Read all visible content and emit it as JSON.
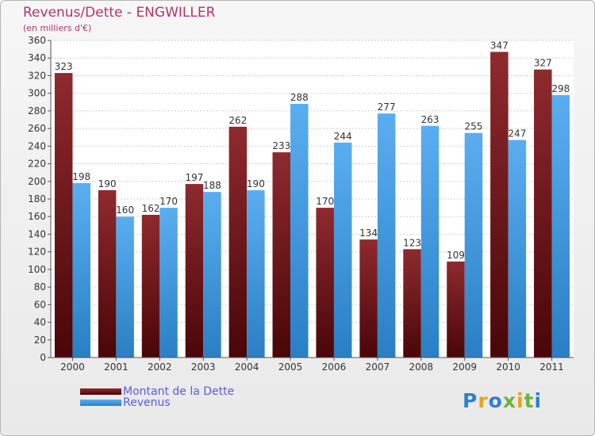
{
  "header": {
    "title": "Revenus/Dette - ENGWILLER",
    "subtitle": "(en milliers d'€)"
  },
  "legend": [
    {
      "label": "Montant de la Dette",
      "color": "#7b1f24"
    },
    {
      "label": "Revenus",
      "color": "#3f9be0"
    }
  ],
  "logo": {
    "text": "Proxiti",
    "letters": [
      "P",
      "r",
      "o",
      "x",
      "i",
      "t",
      "i"
    ],
    "colors": [
      "#2f7fd1",
      "#e8a21c",
      "#2f7fd1",
      "#6cb33f",
      "#e8a21c",
      "#6cb33f",
      "#2f7fd1"
    ]
  },
  "chart_data": {
    "type": "bar",
    "title": "Revenus/Dette - ENGWILLER",
    "subtitle": "(en milliers d'€)",
    "categories": [
      "2000",
      "2001",
      "2002",
      "2003",
      "2004",
      "2005",
      "2006",
      "2007",
      "2008",
      "2009",
      "2010",
      "2011"
    ],
    "series": [
      {
        "name": "Montant de la Dette",
        "color": "#7b1f24",
        "values": [
          323,
          190,
          162,
          197,
          262,
          233,
          170,
          134,
          123,
          109,
          347,
          327
        ]
      },
      {
        "name": "Revenus",
        "color": "#3f9be0",
        "values": [
          198,
          160,
          170,
          188,
          190,
          288,
          244,
          277,
          263,
          255,
          247,
          298
        ]
      }
    ],
    "ylim": [
      0,
      360
    ],
    "ytick_step": 20,
    "yticks": [
      "0",
      "20",
      "40",
      "60",
      "80",
      "100",
      "120",
      "140",
      "160",
      "180",
      "200",
      "220",
      "240",
      "260",
      "280",
      "300",
      "320",
      "340",
      "360"
    ],
    "grid": true,
    "legend_position": "bottom-left"
  }
}
